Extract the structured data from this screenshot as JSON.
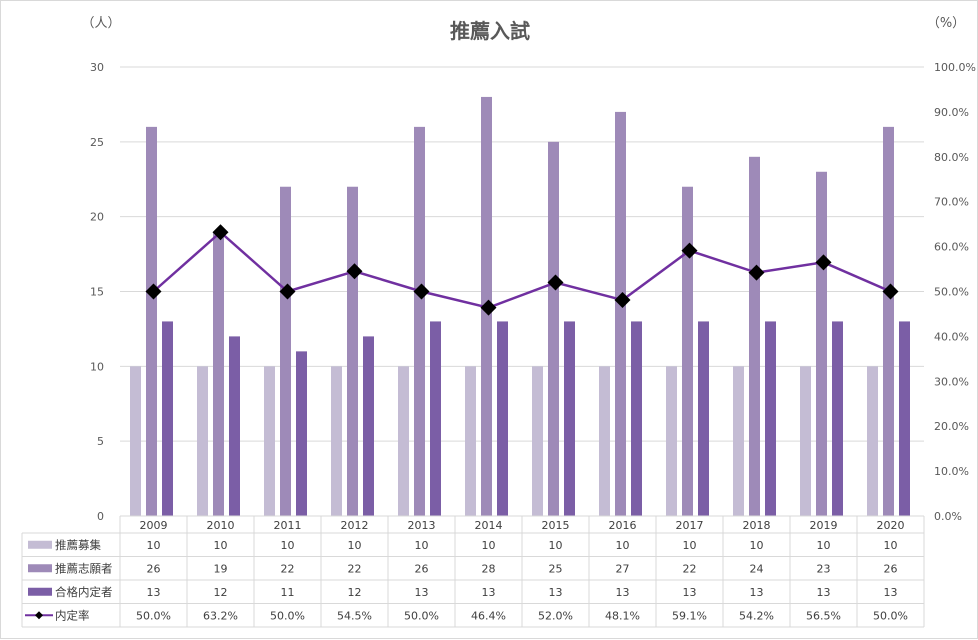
{
  "chart_data": {
    "type": "bar",
    "title": "推薦入試",
    "y_left_unit": "（人）",
    "y_right_unit": "（%）",
    "categories": [
      "2009",
      "2010",
      "2011",
      "2012",
      "2013",
      "2014",
      "2015",
      "2016",
      "2017",
      "2018",
      "2019",
      "2020"
    ],
    "ylim_left": [
      0,
      30
    ],
    "ylim_right": [
      0,
      100
    ],
    "left_ticks": [
      "0",
      "5",
      "10",
      "15",
      "20",
      "25",
      "30"
    ],
    "right_ticks": [
      "0.0%",
      "10.0%",
      "20.0%",
      "30.0%",
      "40.0%",
      "50.0%",
      "60.0%",
      "70.0%",
      "80.0%",
      "90.0%",
      "100.0%"
    ],
    "grid": true,
    "legend": "data-table-bottom",
    "series": [
      {
        "name": "推薦募集",
        "type": "bar",
        "axis": "left",
        "color": "#c4bcd4",
        "values": [
          10,
          10,
          10,
          10,
          10,
          10,
          10,
          10,
          10,
          10,
          10,
          10
        ]
      },
      {
        "name": "推薦志願者",
        "type": "bar",
        "axis": "left",
        "color": "#9e8ab8",
        "values": [
          26,
          19,
          22,
          22,
          26,
          28,
          25,
          27,
          22,
          24,
          23,
          26
        ]
      },
      {
        "name": "合格内定者",
        "type": "bar",
        "axis": "left",
        "color": "#7b5ea6",
        "values": [
          13,
          12,
          11,
          12,
          13,
          13,
          13,
          13,
          13,
          13,
          13,
          13
        ]
      },
      {
        "name": "内定率",
        "type": "line",
        "axis": "right",
        "color": "#7030a0",
        "marker": "diamond",
        "values": [
          50.0,
          63.2,
          50.0,
          54.5,
          50.0,
          46.4,
          52.0,
          48.1,
          59.1,
          54.2,
          56.5,
          50.0
        ],
        "labels": [
          "50.0%",
          "63.2%",
          "50.0%",
          "54.5%",
          "50.0%",
          "46.4%",
          "52.0%",
          "48.1%",
          "59.1%",
          "54.2%",
          "56.5%",
          "50.0%"
        ]
      }
    ]
  }
}
